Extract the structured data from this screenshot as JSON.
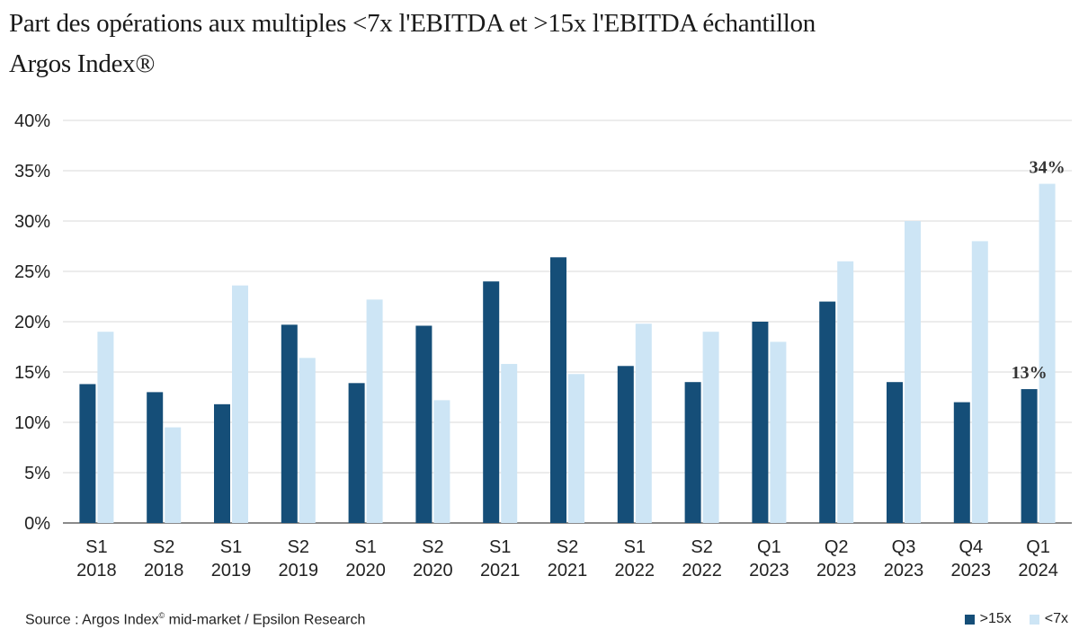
{
  "title_line1": "Part des opérations aux multiples <7x l'EBITDA et >15x l'EBITDA échantillon",
  "title_line2": "Argos Index®",
  "source_prefix": "Source : Argos Index",
  "source_sup": "©",
  "source_suffix": " mid-market / Epsilon Research",
  "colors": {
    "dark": "#154e78",
    "light": "#cde5f5",
    "grid": "#d9d9d9",
    "axis": "#444444"
  },
  "chart_data": {
    "type": "bar",
    "title": "Part des opérations aux multiples <7x l'EBITDA et >15x l'EBITDA échantillon Argos Index®",
    "xlabel": "",
    "ylabel": "",
    "ylim": [
      0,
      40
    ],
    "yticks": [
      "0%",
      "5%",
      "10%",
      "15%",
      "20%",
      "25%",
      "30%",
      "35%",
      "40%"
    ],
    "grid": true,
    "legend_position": "bottom-right",
    "categories": [
      [
        "S1",
        "2018"
      ],
      [
        "S2",
        "2018"
      ],
      [
        "S1",
        "2019"
      ],
      [
        "S2",
        "2019"
      ],
      [
        "S1",
        "2020"
      ],
      [
        "S2",
        "2020"
      ],
      [
        "S1",
        "2021"
      ],
      [
        "S2",
        "2021"
      ],
      [
        "S1",
        "2022"
      ],
      [
        "S2",
        "2022"
      ],
      [
        "Q1",
        "2023"
      ],
      [
        "Q2",
        "2023"
      ],
      [
        "Q3",
        "2023"
      ],
      [
        "Q4",
        "2023"
      ],
      [
        "Q1",
        "2024"
      ]
    ],
    "series": [
      {
        "name": ">15x",
        "color": "#154e78",
        "values": [
          13.8,
          13.0,
          11.8,
          19.7,
          13.9,
          19.6,
          24.0,
          26.4,
          15.6,
          14.0,
          20.0,
          22.0,
          14.0,
          12.0,
          13.3
        ]
      },
      {
        "name": "<7x",
        "color": "#cde5f5",
        "values": [
          19.0,
          9.5,
          23.6,
          16.4,
          22.2,
          12.2,
          15.8,
          14.8,
          19.8,
          19.0,
          18.0,
          26.0,
          30.0,
          28.0,
          33.7
        ]
      }
    ],
    "annotations": [
      {
        "series": 0,
        "index": 14,
        "text": "13%"
      },
      {
        "series": 1,
        "index": 14,
        "text": "34%"
      }
    ]
  }
}
